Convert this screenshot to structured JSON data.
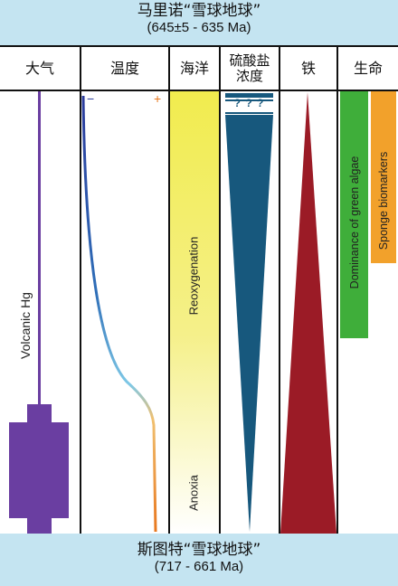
{
  "top_band": {
    "title": "马里诺“雪球地球”",
    "subtitle": "(645±5 - 635 Ma)"
  },
  "bottom_band": {
    "title": "斯图特“雪球地球”",
    "subtitle": "(717 - 661 Ma)"
  },
  "columns": {
    "atmosphere": "大气",
    "temperature": "温度",
    "ocean": "海洋",
    "sulfate_line1": "硫酸盐",
    "sulfate_line2": "浓度",
    "iron": "铁",
    "life": "生命"
  },
  "labels": {
    "volcanic_hg": "Volcanic Hg",
    "temp_minus": "−",
    "temp_plus": "+",
    "reoxygenation": "Reoxygenation",
    "anoxia": "Anoxia",
    "question_marks": "? ? ?",
    "green_algae": "Dominance of green algae",
    "sponge": "Sponge biomarkers"
  },
  "colors": {
    "band_bg": "#c4e4f1",
    "volcanic_hg": "#6a3ea1",
    "ocean_yellow": "#f1ec4e",
    "sulfate_blue": "#17587d",
    "iron_red": "#9b1b26",
    "green_algae": "#3fae3a",
    "sponge_orange": "#f2a12b",
    "temp_cold": "#2b3b9c",
    "temp_mid": "#7ec8e6",
    "temp_warm": "#e8771e"
  }
}
